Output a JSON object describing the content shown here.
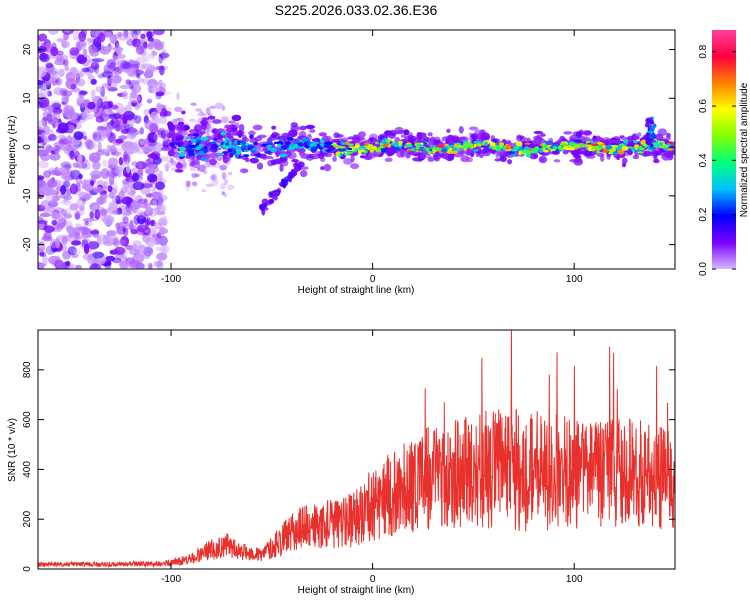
{
  "title": "S225.2026.033.02.36.E36",
  "chart_data": [
    {
      "type": "heatmap",
      "xlabel": "Height of straight line (km)",
      "ylabel": "Frequency (Hz)",
      "xlim": [
        -166,
        150
      ],
      "ylim": [
        -25,
        24
      ],
      "xticks": [
        -100,
        0,
        100
      ],
      "yticks": [
        -20,
        -10,
        0,
        10,
        20
      ],
      "colorbar": {
        "label": "Normalized spectral amplitude",
        "range": [
          0.0,
          0.88
        ],
        "ticks": [
          0.0,
          0.2,
          0.4,
          0.6,
          0.8
        ],
        "colormap": [
          "#d8b8ff",
          "#7b00ff",
          "#0000ff",
          "#00c0ff",
          "#00ff80",
          "#80ff00",
          "#ffff00",
          "#ff8000",
          "#ff0040",
          "#ff40a0"
        ]
      },
      "features": {
        "noise_region_x": [
          -166,
          -103
        ],
        "diffuse_region_x": [
          -103,
          -80
        ],
        "ridge_center_hz": 0,
        "ridge_halfwidth_hz": 3,
        "tail_segment": {
          "x": [
            -55,
            -35
          ],
          "y": [
            -13,
            -3
          ]
        },
        "right_spike": {
          "x": 138,
          "y": [
            0,
            6
          ]
        }
      }
    },
    {
      "type": "line",
      "xlabel": "Height of straight line (km)",
      "ylabel": "SNR (10 * v/v)",
      "xlim": [
        -166,
        150
      ],
      "ylim": [
        0,
        960
      ],
      "xticks": [
        -100,
        0,
        100
      ],
      "yticks": [
        0,
        200,
        400,
        600,
        800
      ],
      "series": [
        {
          "name": "SNR",
          "color": "#e8302c",
          "envelope_x": [
            -166,
            -105,
            -90,
            -80,
            -72,
            -65,
            -55,
            -45,
            -35,
            -25,
            -15,
            -5,
            5,
            15,
            25,
            35,
            45,
            55,
            65,
            75,
            85,
            95,
            105,
            115,
            125,
            135,
            145,
            150
          ],
          "envelope_mean": [
            18,
            20,
            40,
            80,
            95,
            70,
            55,
            120,
            170,
            175,
            190,
            230,
            280,
            330,
            360,
            380,
            395,
            400,
            400,
            395,
            390,
            385,
            380,
            385,
            390,
            380,
            360,
            350
          ],
          "envelope_noise": [
            8,
            10,
            20,
            40,
            45,
            30,
            25,
            60,
            80,
            85,
            100,
            120,
            150,
            170,
            190,
            200,
            210,
            220,
            230,
            230,
            220,
            210,
            200,
            200,
            200,
            200,
            190,
            180
          ]
        }
      ]
    }
  ]
}
